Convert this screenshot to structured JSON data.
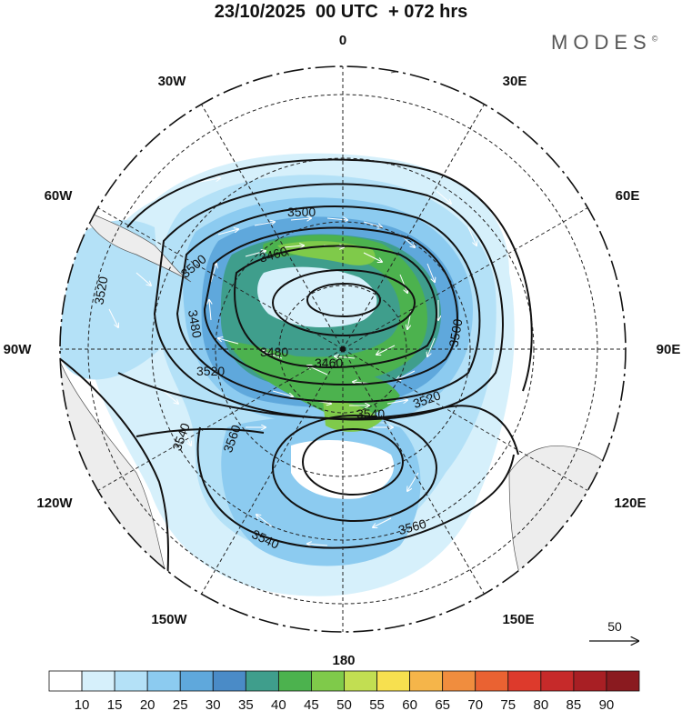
{
  "header": {
    "title": "23/10/2025  00 UTC  + 072 hrs",
    "brand": "MODES",
    "brand_mark": "©"
  },
  "map": {
    "projection": "south-polar-stereographic",
    "longitude_labels": [
      {
        "text": "0",
        "lon": 0
      },
      {
        "text": "30E",
        "lon": 30
      },
      {
        "text": "60E",
        "lon": 60
      },
      {
        "text": "90E",
        "lon": 90
      },
      {
        "text": "120E",
        "lon": 120
      },
      {
        "text": "150E",
        "lon": 150
      },
      {
        "text": "180",
        "lon": 180
      },
      {
        "text": "150W",
        "lon": -150
      },
      {
        "text": "120W",
        "lon": -120
      },
      {
        "text": "90W",
        "lon": -90
      },
      {
        "text": "60W",
        "lon": -60
      },
      {
        "text": "30W",
        "lon": -30
      }
    ],
    "contour_labels": [
      "3500",
      "3520",
      "3460",
      "3500",
      "3480",
      "3480",
      "3460",
      "3500",
      "3520",
      "3520",
      "3540",
      "3540",
      "3560",
      "3560",
      "3540"
    ],
    "wind_reference": {
      "label": "50"
    }
  },
  "colorbar": {
    "ticks": [
      "10",
      "15",
      "20",
      "25",
      "30",
      "35",
      "40",
      "45",
      "50",
      "55",
      "60",
      "65",
      "70",
      "75",
      "80",
      "85",
      "90"
    ],
    "colors": [
      "#ffffff",
      "#d6f0fb",
      "#b4e1f7",
      "#8ccbf0",
      "#5fa8dc",
      "#4a8bc7",
      "#3f9e8c",
      "#4cb24e",
      "#7fca4a",
      "#c2de52",
      "#f7e04f",
      "#f5b54a",
      "#f08d3e",
      "#ea6232",
      "#dd3a2c",
      "#c62a2a",
      "#a81f24",
      "#8a1a1f"
    ]
  }
}
